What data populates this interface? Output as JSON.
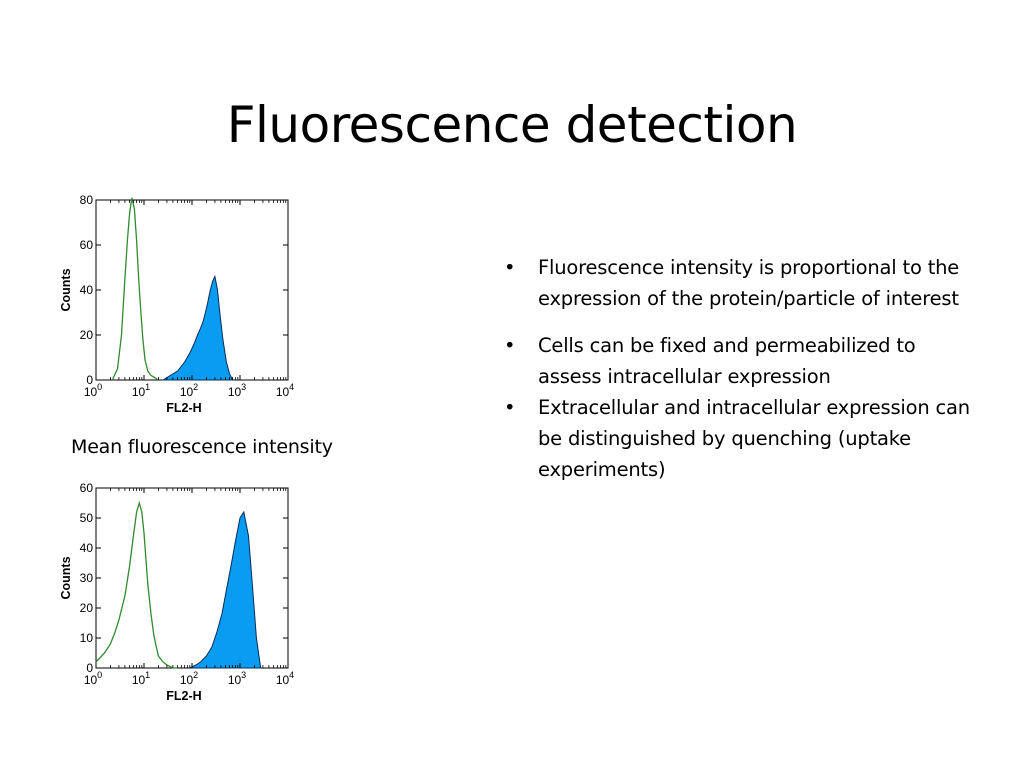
{
  "slide": {
    "title": "Fluorescence detection",
    "caption": "Mean fluorescence intensity",
    "bullets": [
      "Fluorescence intensity is proportional to the expression of the protein/particle of interest",
      "Cells can be fixed and permeabilized to assess intracellular expression",
      "Extracellular and intracellular expression can be distinguished by quenching (uptake experiments)"
    ]
  },
  "chart_data": [
    {
      "type": "area",
      "xlabel": "FL2-H",
      "ylabel": "Counts",
      "xscale": "log",
      "xlim": [
        1,
        10000
      ],
      "ylim": [
        0,
        80
      ],
      "x_ticks": [
        1,
        10,
        100,
        1000,
        10000
      ],
      "y_ticks": [
        0,
        20,
        40,
        60,
        80
      ],
      "y_tick_labels": [
        "0",
        "20",
        "40",
        "60",
        "80"
      ],
      "series": [
        {
          "style": "outline",
          "color": "#2e8b2e",
          "x": [
            2.2,
            2.8,
            3.4,
            4.0,
            4.5,
            5.0,
            5.6,
            6.3,
            7.0,
            7.8,
            8.6,
            9.5,
            10.5,
            12,
            14,
            17,
            20
          ],
          "y": [
            0,
            5,
            20,
            45,
            62,
            74,
            81,
            76,
            62,
            44,
            30,
            18,
            9,
            4,
            2,
            1,
            0
          ]
        },
        {
          "style": "filled",
          "color": "#0a9cf0",
          "x": [
            25,
            35,
            50,
            70,
            90,
            110,
            130,
            150,
            170,
            190,
            210,
            240,
            270,
            300,
            340,
            380,
            440,
            520,
            600,
            700
          ],
          "y": [
            0,
            2,
            4,
            8,
            12,
            16,
            20,
            23,
            26,
            30,
            34,
            40,
            44,
            46,
            40,
            30,
            18,
            8,
            3,
            0
          ]
        }
      ]
    },
    {
      "type": "area",
      "xlabel": "FL2-H",
      "ylabel": "Counts",
      "xscale": "log",
      "xlim": [
        1,
        10000
      ],
      "ylim": [
        0,
        60
      ],
      "x_ticks": [
        1,
        10,
        100,
        1000,
        10000
      ],
      "y_ticks": [
        0,
        10,
        20,
        30,
        40,
        50,
        60
      ],
      "y_tick_labels": [
        "0",
        "10",
        "20",
        "30",
        "40",
        "50",
        "60"
      ],
      "series": [
        {
          "style": "outline",
          "color": "#2e8b2e",
          "x": [
            1,
            1.5,
            2.0,
            2.5,
            3.0,
            4.0,
            5.0,
            6.0,
            7.0,
            8.0,
            9.0,
            10,
            11,
            12,
            14,
            16,
            18,
            20,
            25,
            30,
            40,
            50
          ],
          "y": [
            2,
            5,
            8,
            12,
            16,
            24,
            34,
            44,
            52,
            55,
            52,
            45,
            36,
            28,
            18,
            11,
            7,
            4,
            2,
            1,
            0,
            0
          ]
        },
        {
          "style": "filled",
          "color": "#0a9cf0",
          "x": [
            90,
            120,
            150,
            200,
            260,
            330,
            420,
            520,
            650,
            800,
            1000,
            1200,
            1500,
            1800,
            2200,
            2700
          ],
          "y": [
            0,
            1,
            2,
            4,
            7,
            12,
            18,
            26,
            34,
            42,
            50,
            52,
            44,
            28,
            10,
            0
          ]
        }
      ]
    }
  ]
}
